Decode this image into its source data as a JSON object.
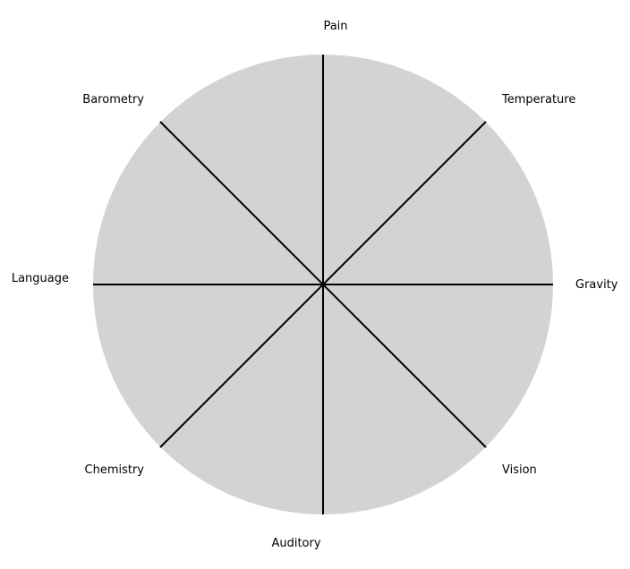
{
  "diagram": {
    "type": "radial-wheel",
    "fill_color": "#d3d3d3",
    "line_color": "#000000",
    "background_color": "#ffffff",
    "labels": {
      "top": "Pain",
      "top_right": "Temperature",
      "right": "Gravity",
      "bottom_right": "Vision",
      "bottom": "Auditory",
      "bottom_left": "Chemistry",
      "left": "Language",
      "top_left": "Barometry"
    }
  }
}
